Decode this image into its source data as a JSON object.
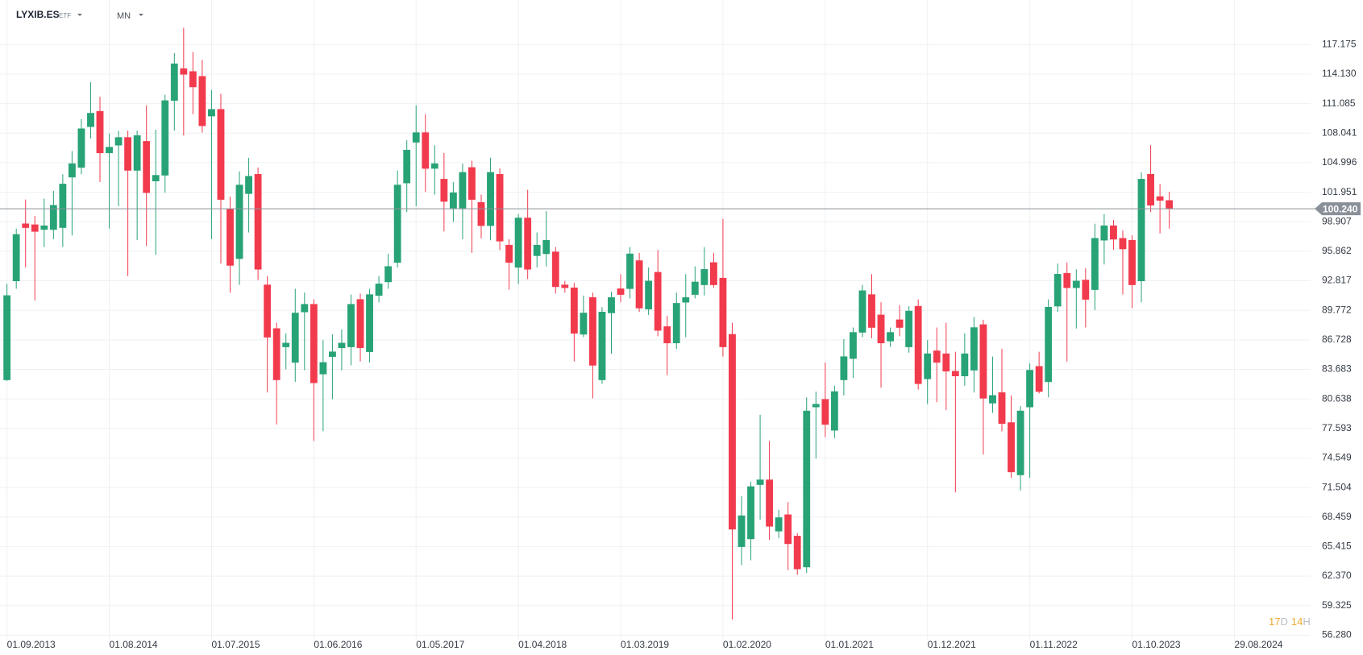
{
  "header": {
    "symbol": "LYXIB.ES",
    "asset_type": "ETF",
    "timeframe": "MN"
  },
  "countdown": {
    "days": 17,
    "day_unit": "D",
    "hours": 14,
    "hour_unit": "H"
  },
  "chart_data": {
    "type": "candlestick",
    "colors": {
      "up": "#27a376",
      "down": "#f23a4d"
    },
    "grid": true,
    "xlim": [
      -0.75,
      140.2
    ],
    "xticks": [
      {
        "value": 0,
        "label": "01.09.2013"
      },
      {
        "value": 11,
        "label": "01.08.2014"
      },
      {
        "value": 22,
        "label": "01.07.2015"
      },
      {
        "value": 33,
        "label": "01.06.2016"
      },
      {
        "value": 44,
        "label": "01.05.2017"
      },
      {
        "value": 55,
        "label": "01.04.2018"
      },
      {
        "value": 66,
        "label": "01.03.2019"
      },
      {
        "value": 77,
        "label": "01.02.2020"
      },
      {
        "value": 88,
        "label": "01.01.2021"
      },
      {
        "value": 99,
        "label": "01.12.2021"
      },
      {
        "value": 110,
        "label": "01.11.2022"
      },
      {
        "value": 121,
        "label": "01.10.2023"
      },
      {
        "value": 132,
        "label": "29.08.2024"
      }
    ],
    "ylim": [
      55.73,
      121.77
    ],
    "yticks": [
      {
        "value": 117.175,
        "label": "117.175"
      },
      {
        "value": 114.13,
        "label": "114.130"
      },
      {
        "value": 111.085,
        "label": "111.085"
      },
      {
        "value": 108.041,
        "label": "108.041"
      },
      {
        "value": 104.996,
        "label": "104.996"
      },
      {
        "value": 101.951,
        "label": "101.951"
      },
      {
        "value": 98.907,
        "label": "98.907"
      },
      {
        "value": 95.862,
        "label": "95.862"
      },
      {
        "value": 92.817,
        "label": "92.817"
      },
      {
        "value": 89.772,
        "label": "89.772"
      },
      {
        "value": 86.728,
        "label": "86.728"
      },
      {
        "value": 83.683,
        "label": "83.683"
      },
      {
        "value": 80.638,
        "label": "80.638"
      },
      {
        "value": 77.593,
        "label": "77.593"
      },
      {
        "value": 74.549,
        "label": "74.549"
      },
      {
        "value": 71.504,
        "label": "71.504"
      },
      {
        "value": 68.459,
        "label": "68.459"
      },
      {
        "value": 65.415,
        "label": "65.415"
      },
      {
        "value": 62.37,
        "label": "62.370"
      },
      {
        "value": 59.325,
        "label": "59.325"
      },
      {
        "value": 56.28,
        "label": "56.280"
      }
    ],
    "last_price": {
      "value": 100.24,
      "label": "100.240",
      "color": "#8a9099"
    },
    "open": [
      82.6,
      92.8,
      98.7,
      98.6,
      98.1,
      98.1,
      98.3,
      103.5,
      104.5,
      108.7,
      110.3,
      106.0,
      106.8,
      107.6,
      104.2,
      107.2,
      103.1,
      103.7,
      111.4,
      114.7,
      114.4,
      113.9,
      109.8,
      110.5,
      100.2,
      95.1,
      101.8,
      103.8,
      92.4,
      87.9,
      86.0,
      84.4,
      89.6,
      90.4,
      83.2,
      85.0,
      85.9,
      86.0,
      90.9,
      85.5,
      91.3,
      92.7,
      94.7,
      102.9,
      107.1,
      108.1,
      104.4,
      103.3,
      100.3,
      100.3,
      104.5,
      100.9,
      98.5,
      103.8,
      96.5,
      94.2,
      99.3,
      95.4,
      95.6,
      95.8,
      92.4,
      92.1,
      87.3,
      91.1,
      82.6,
      89.5,
      92.0,
      92.0,
      94.9,
      89.9,
      93.7,
      88.1,
      86.4,
      90.6,
      91.4,
      92.4,
      94.7,
      93.1,
      87.3,
      65.4,
      66.2,
      71.8,
      72.3,
      67.0,
      68.7,
      66.5,
      63.3,
      79.8,
      80.6,
      77.4,
      82.6,
      84.8,
      87.5,
      91.4,
      89.3,
      86.6,
      88.8,
      86.0,
      90.2,
      82.7,
      85.6,
      85.3,
      83.5,
      83.0,
      83.6,
      88.3,
      80.2,
      81.3,
      78.2,
      72.8,
      79.8,
      84.0,
      82.4,
      90.2,
      93.6,
      92.1,
      92.9,
      91.9,
      97.0,
      98.5,
      97.2,
      97.0,
      92.8,
      103.8,
      101.5,
      101.1
    ],
    "high": [
      92.5,
      98.2,
      101.2,
      99.5,
      101.3,
      102.1,
      103.8,
      106.2,
      109.5,
      113.3,
      111.8,
      108.0,
      108.3,
      108.3,
      108.3,
      110.9,
      108.4,
      112.0,
      116.3,
      118.9,
      116.4,
      115.6,
      112.5,
      112.1,
      101.5,
      104.1,
      105.5,
      104.5,
      93.3,
      88.5,
      87.4,
      92.0,
      91.6,
      90.9,
      86.7,
      87.3,
      87.8,
      91.4,
      91.5,
      92.0,
      93.3,
      95.6,
      104.2,
      107.3,
      110.9,
      110.0,
      106.8,
      106.0,
      103.0,
      104.9,
      105.2,
      101.7,
      105.5,
      104.4,
      97.1,
      99.7,
      102.2,
      97.8,
      100.0,
      96.3,
      92.8,
      92.6,
      91.3,
      91.6,
      90.1,
      91.7,
      93.5,
      96.3,
      95.7,
      94.2,
      96.0,
      89.2,
      91.6,
      93.5,
      94.3,
      96.3,
      95.7,
      99.2,
      88.5,
      70.6,
      72.1,
      79.0,
      76.3,
      69.2,
      70.0,
      66.8,
      80.8,
      81.4,
      84.4,
      82.0,
      86.8,
      88.0,
      92.4,
      93.5,
      90.6,
      88.0,
      90.3,
      90.2,
      90.9,
      86.7,
      88.0,
      88.5,
      85.5,
      87.4,
      89.1,
      88.8,
      85.0,
      85.8,
      81.0,
      79.9,
      84.3,
      85.5,
      90.9,
      94.6,
      94.7,
      94.0,
      94.1,
      98.7,
      99.7,
      99.1,
      98.0,
      97.5,
      104.0,
      106.8,
      102.8,
      102.0
    ],
    "low": [
      82.5,
      92.0,
      94.2,
      90.8,
      96.3,
      97.1,
      96.3,
      97.5,
      103.8,
      107.5,
      103.0,
      98.2,
      100.5,
      93.3,
      97.0,
      96.4,
      95.5,
      101.9,
      108.3,
      107.8,
      110.0,
      108.1,
      97.1,
      94.6,
      91.6,
      92.4,
      97.8,
      92.9,
      81.3,
      78.0,
      83.7,
      82.4,
      83.6,
      76.3,
      77.3,
      80.6,
      83.6,
      84.1,
      84.5,
      84.4,
      90.6,
      92.0,
      94.2,
      99.9,
      100.5,
      102.0,
      101.7,
      97.9,
      98.9,
      97.1,
      95.7,
      97.2,
      97.0,
      96.0,
      91.9,
      92.5,
      93.0,
      94.2,
      94.3,
      91.5,
      91.6,
      84.5,
      87.0,
      80.7,
      82.2,
      85.3,
      90.6,
      91.0,
      89.6,
      89.3,
      87.1,
      83.1,
      85.8,
      87.0,
      91.0,
      91.3,
      92.1,
      85.0,
      57.9,
      63.5,
      64.0,
      68.2,
      66.1,
      66.3,
      63.0,
      62.5,
      62.7,
      74.5,
      76.7,
      76.6,
      81.0,
      82.8,
      87.0,
      86.9,
      81.8,
      86.0,
      87.1,
      85.4,
      81.6,
      80.1,
      80.3,
      79.5,
      71.0,
      82.0,
      81.3,
      74.9,
      79.2,
      77.3,
      72.5,
      71.2,
      72.5,
      81.2,
      80.8,
      89.6,
      84.5,
      87.9,
      88.0,
      89.8,
      94.5,
      96.0,
      91.4,
      90.0,
      90.6,
      99.9,
      97.7,
      98.2
    ],
    "close": [
      91.3,
      97.6,
      98.3,
      97.9,
      98.5,
      100.6,
      102.8,
      104.9,
      108.5,
      110.1,
      106.0,
      106.6,
      107.6,
      104.2,
      107.8,
      101.9,
      103.7,
      111.4,
      115.2,
      114.1,
      112.8,
      108.8,
      110.5,
      101.2,
      94.4,
      102.7,
      103.6,
      94.0,
      87.0,
      82.6,
      86.4,
      89.5,
      90.4,
      82.3,
      84.4,
      85.5,
      86.4,
      90.4,
      85.9,
      91.4,
      92.5,
      94.3,
      102.7,
      106.3,
      108.1,
      104.4,
      104.9,
      101.0,
      101.9,
      104.0,
      101.2,
      98.5,
      104.0,
      96.9,
      94.7,
      99.3,
      94.0,
      96.5,
      97.0,
      92.2,
      92.1,
      87.4,
      89.5,
      84.1,
      89.6,
      91.1,
      91.4,
      95.6,
      90.0,
      92.8,
      87.7,
      86.4,
      90.5,
      91.1,
      92.7,
      94.0,
      92.4,
      86.0,
      67.2,
      68.6,
      71.6,
      72.3,
      67.5,
      68.4,
      65.7,
      63.1,
      79.4,
      80.1,
      78.0,
      81.4,
      85.0,
      87.5,
      91.8,
      88.0,
      86.4,
      87.5,
      88.0,
      89.7,
      82.2,
      85.3,
      84.4,
      83.5,
      83.0,
      85.3,
      88.0,
      80.7,
      81.0,
      78.1,
      73.1,
      79.4,
      83.6,
      81.4,
      90.1,
      93.5,
      92.1,
      92.8,
      90.9,
      97.2,
      98.5,
      97.1,
      96.1,
      92.4,
      103.3,
      100.6,
      101.1,
      100.24
    ]
  }
}
